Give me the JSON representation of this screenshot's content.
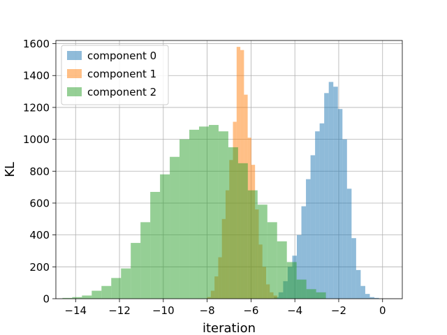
{
  "chart_data": {
    "type": "histogram",
    "xlabel": "iteration",
    "ylabel": "KL",
    "xlim": [
      -14.9,
      0.9
    ],
    "ylim": [
      0,
      1620
    ],
    "xticks": [
      -14,
      -12,
      -10,
      -8,
      -6,
      -4,
      -2,
      0
    ],
    "xtick_labels": [
      "−14",
      "−12",
      "−10",
      "−8",
      "−6",
      "−4",
      "−2",
      "0"
    ],
    "yticks": [
      0,
      200,
      400,
      600,
      800,
      1000,
      1200,
      1400,
      1600
    ],
    "ytick_labels": [
      "0",
      "200",
      "400",
      "600",
      "800",
      "1000",
      "1200",
      "1400",
      "1600"
    ],
    "grid": true,
    "legend_position": "top-left",
    "series": [
      {
        "name": "component 0",
        "color": "#1f77b4",
        "bin_start": -4.95,
        "bin_width": 0.208,
        "counts": [
          10,
          40,
          110,
          200,
          270,
          400,
          580,
          750,
          900,
          1050,
          1100,
          1290,
          1360,
          1330,
          1190,
          1000,
          690,
          380,
          180,
          80,
          30,
          10,
          5
        ]
      },
      {
        "name": "component 1",
        "color": "#ff7f0e",
        "bin_start": -8.0,
        "bin_width": 0.168,
        "counts": [
          10,
          50,
          140,
          260,
          500,
          680,
          870,
          1110,
          1580,
          1560,
          1280,
          1010,
          840,
          560,
          340,
          200,
          90,
          40,
          20
        ]
      },
      {
        "name": "component 2",
        "color": "#2ca02c",
        "bin_start": -14.6,
        "bin_width": 0.445,
        "counts": [
          5,
          10,
          20,
          50,
          80,
          130,
          190,
          350,
          480,
          670,
          780,
          890,
          1000,
          1060,
          1080,
          1090,
          1050,
          950,
          850,
          680,
          590,
          480,
          360,
          230,
          120,
          60,
          40
        ]
      }
    ]
  }
}
